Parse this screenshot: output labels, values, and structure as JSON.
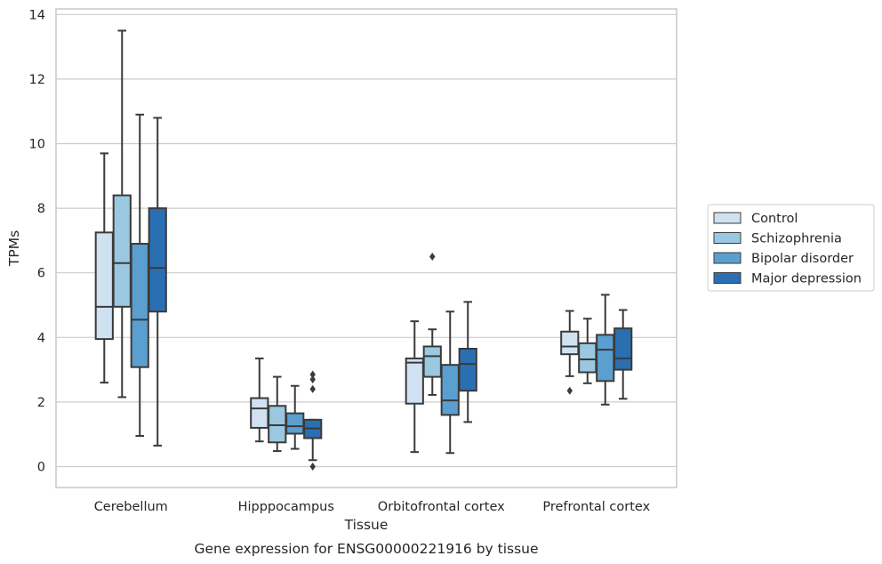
{
  "chart_data": {
    "type": "box",
    "title": "",
    "caption": "Gene expression for ENSG00000221916 by tissue",
    "xlabel": "Tissue",
    "ylabel": "TPMs",
    "ylim": [
      -0.65,
      14.2
    ],
    "yticks": [
      0,
      2,
      4,
      6,
      8,
      10,
      12,
      14
    ],
    "grid": "horizontal",
    "legend_position": "right",
    "categories": [
      "Cerebellum",
      "Hipppocampus",
      "Orbitofrontal cortex",
      "Prefrontal cortex"
    ],
    "series": [
      {
        "name": "Control",
        "color": "#d0e1f2",
        "boxes": [
          {
            "whisker_low": 2.6,
            "q1": 3.95,
            "median": 4.95,
            "q3": 7.25,
            "whisker_high": 9.7,
            "outliers": []
          },
          {
            "whisker_low": 0.78,
            "q1": 1.2,
            "median": 1.8,
            "q3": 2.12,
            "whisker_high": 3.35,
            "outliers": []
          },
          {
            "whisker_low": 0.45,
            "q1": 1.95,
            "median": 3.22,
            "q3": 3.35,
            "whisker_high": 4.5,
            "outliers": []
          },
          {
            "whisker_low": 2.8,
            "q1": 3.48,
            "median": 3.72,
            "q3": 4.18,
            "whisker_high": 4.82,
            "outliers": [
              2.35
            ]
          }
        ]
      },
      {
        "name": "Schizophrenia",
        "color": "#9ac8e0",
        "boxes": [
          {
            "whisker_low": 2.15,
            "q1": 4.95,
            "median": 6.3,
            "q3": 8.4,
            "whisker_high": 13.5,
            "outliers": []
          },
          {
            "whisker_low": 0.48,
            "q1": 0.75,
            "median": 1.28,
            "q3": 1.88,
            "whisker_high": 2.78,
            "outliers": []
          },
          {
            "whisker_low": 2.22,
            "q1": 2.78,
            "median": 3.42,
            "q3": 3.72,
            "whisker_high": 4.25,
            "outliers": [
              6.5
            ]
          },
          {
            "whisker_low": 2.58,
            "q1": 2.92,
            "median": 3.32,
            "q3": 3.82,
            "whisker_high": 4.58,
            "outliers": []
          }
        ]
      },
      {
        "name": "Bipolar disorder",
        "color": "#5a9fcf",
        "boxes": [
          {
            "whisker_low": 0.95,
            "q1": 3.08,
            "median": 4.55,
            "q3": 6.9,
            "whisker_high": 10.9,
            "outliers": []
          },
          {
            "whisker_low": 0.55,
            "q1": 1.02,
            "median": 1.25,
            "q3": 1.65,
            "whisker_high": 2.5,
            "outliers": []
          },
          {
            "whisker_low": 0.42,
            "q1": 1.6,
            "median": 2.05,
            "q3": 3.15,
            "whisker_high": 4.8,
            "outliers": []
          },
          {
            "whisker_low": 1.92,
            "q1": 2.65,
            "median": 3.62,
            "q3": 4.08,
            "whisker_high": 5.32,
            "outliers": []
          }
        ]
      },
      {
        "name": "Major depression",
        "color": "#2b6fb3",
        "boxes": [
          {
            "whisker_low": 0.65,
            "q1": 4.8,
            "median": 6.15,
            "q3": 8.0,
            "whisker_high": 10.8,
            "outliers": []
          },
          {
            "whisker_low": 0.2,
            "q1": 0.88,
            "median": 1.18,
            "q3": 1.45,
            "whisker_high": 1.45,
            "outliers": [
              0.0,
              2.4,
              2.7,
              2.85
            ]
          },
          {
            "whisker_low": 1.38,
            "q1": 2.35,
            "median": 3.18,
            "q3": 3.65,
            "whisker_high": 5.1,
            "outliers": []
          },
          {
            "whisker_low": 2.1,
            "q1": 3.0,
            "median": 3.35,
            "q3": 4.28,
            "whisker_high": 4.85,
            "outliers": []
          }
        ]
      }
    ]
  }
}
